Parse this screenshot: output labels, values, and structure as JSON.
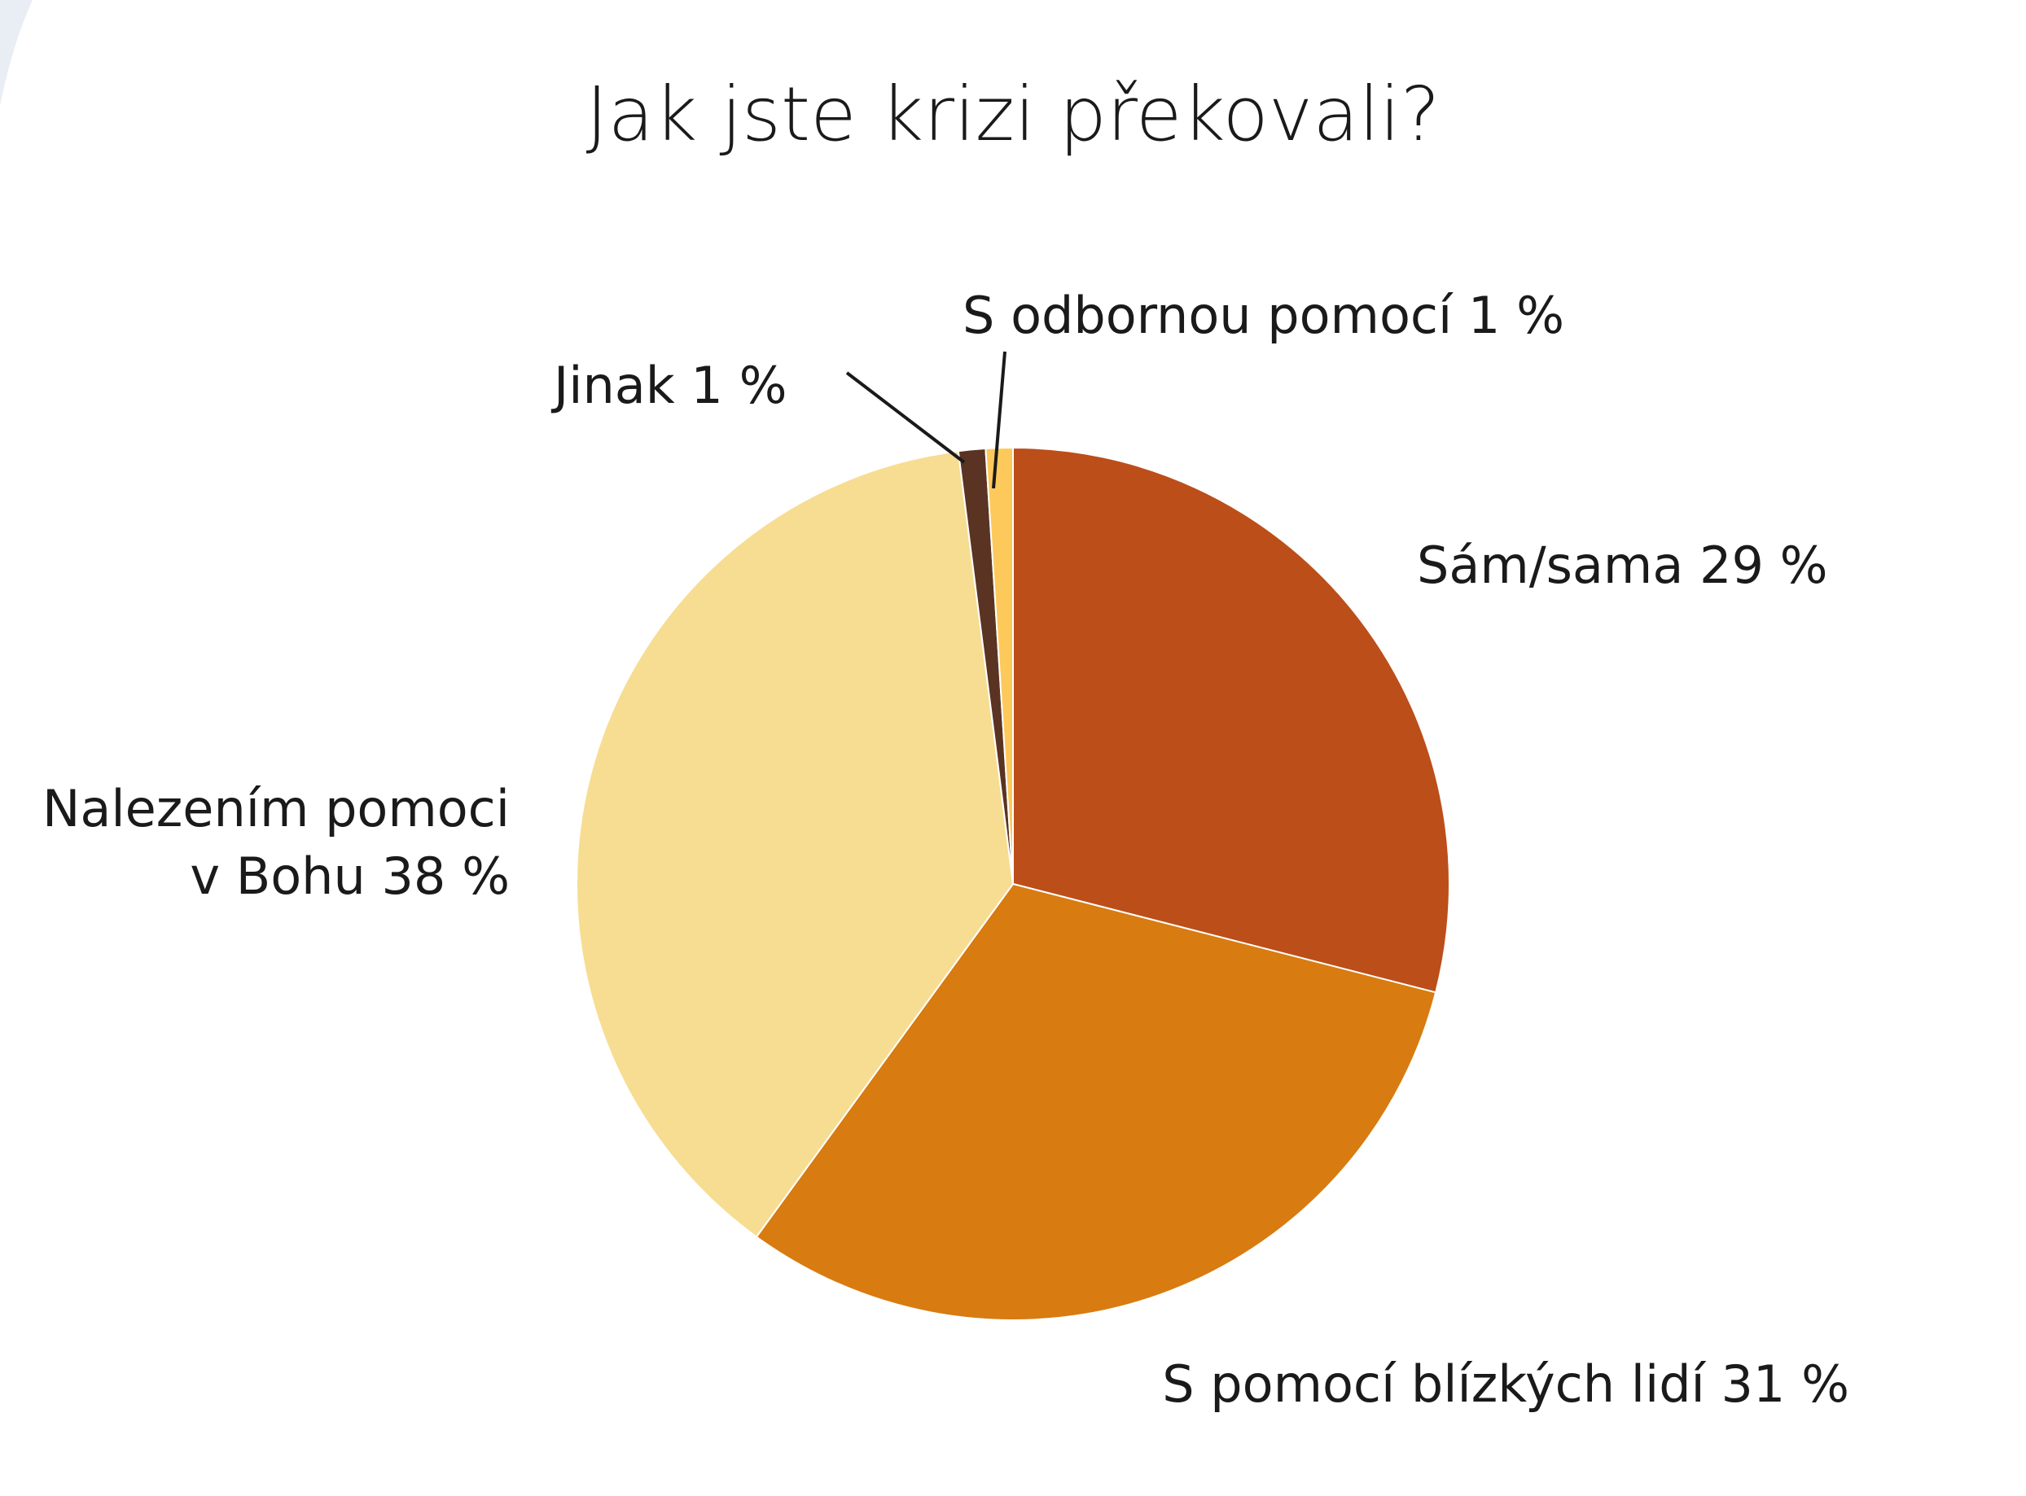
{
  "chart_data": {
    "type": "pie",
    "title": "Jak jste krizi překovali?",
    "slices": [
      {
        "label": "Sám/sama 29 %",
        "value": 29,
        "color": "#bc4e1a"
      },
      {
        "label": "S pomocí blízkých lidí 31 %",
        "value": 31,
        "color": "#d87b10"
      },
      {
        "label_lines": [
          "Nalezením pomoci",
          "v Bohu 38 %"
        ],
        "value": 38,
        "color": "#f7dd92"
      },
      {
        "label": "Jinak 1 %",
        "value": 1,
        "color": "#5a3322"
      },
      {
        "label": "S odbornou pomocí 1 %",
        "value": 1,
        "color": "#fdc95a"
      }
    ],
    "start_angle": "12 o'clock",
    "direction": "clockwise"
  },
  "decoration": {
    "corner_arc_color": "#e9eef5"
  }
}
